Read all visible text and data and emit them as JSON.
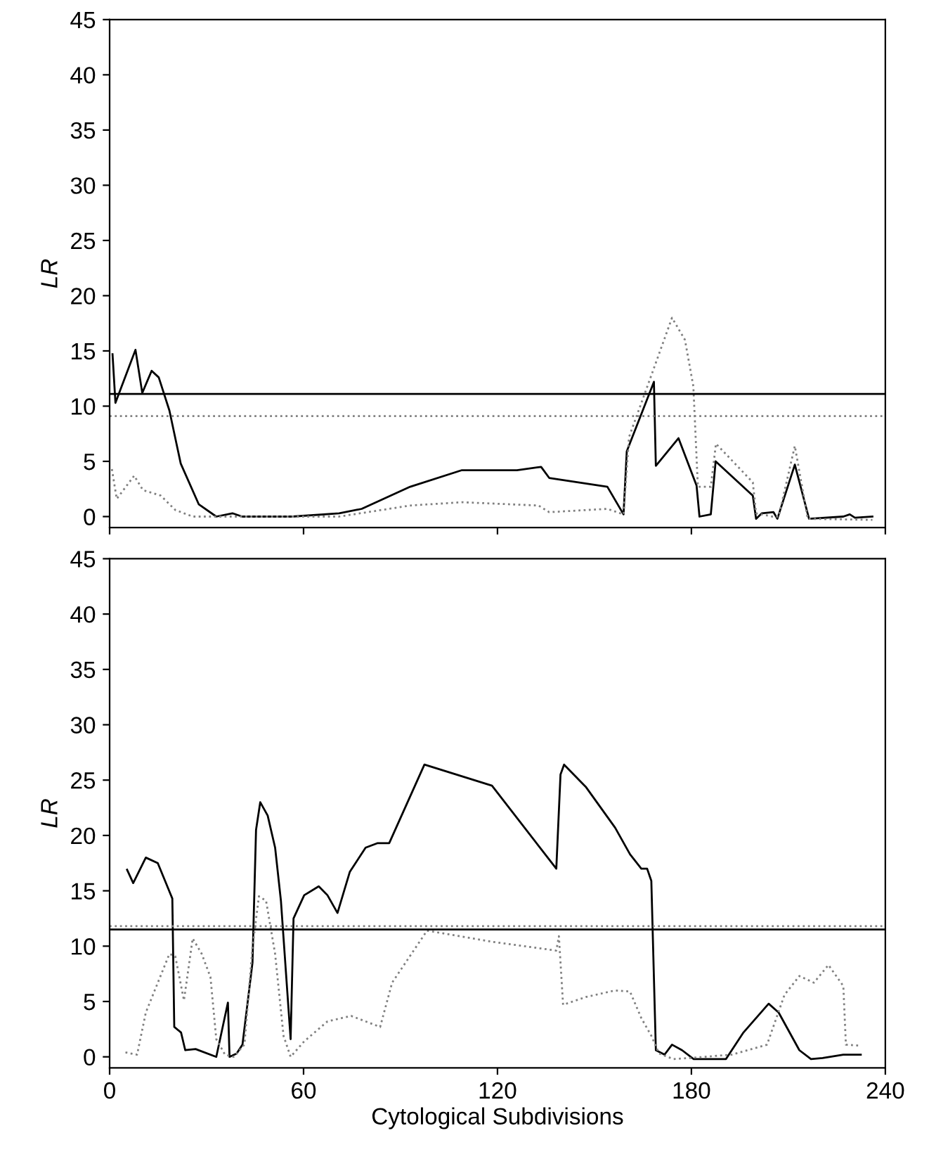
{
  "chart_data": [
    {
      "type": "line",
      "ylabel": "LR",
      "xlim": [
        0,
        240
      ],
      "ylim": [
        -1,
        45
      ],
      "xticks": [
        0,
        60,
        120,
        180,
        240
      ],
      "yticks": [
        0,
        5,
        10,
        15,
        20,
        25,
        30,
        35,
        40,
        45
      ],
      "tick_labels": "y",
      "grid": false,
      "series": [
        {
          "color": "#000000",
          "line_style": "solid",
          "x": [
            0.9,
            1.8,
            8,
            10.1,
            13,
            15.2,
            18.5,
            22,
            27.6,
            33,
            38,
            41,
            56.5,
            71,
            78,
            93,
            109,
            126,
            133.5,
            136,
            154,
            159,
            160,
            168.4,
            169,
            176,
            181.6,
            182.5,
            186,
            187.5,
            199,
            200,
            201.8,
            205.4,
            206.6,
            212,
            216.4,
            227,
            229,
            230.6,
            236
          ],
          "values": [
            14.7,
            10.3,
            15.1,
            11.2,
            13.2,
            12.6,
            9.6,
            4.8,
            1.1,
            0,
            0.3,
            0,
            0,
            0.3,
            0.7,
            2.7,
            4.2,
            4.2,
            4.5,
            3.5,
            2.7,
            0.2,
            5.9,
            12.2,
            4.6,
            7.1,
            2.8,
            0,
            0.2,
            5,
            1.9,
            -0.2,
            0.3,
            0.4,
            -0.2,
            4.7,
            -0.2,
            0,
            0.2,
            -0.1,
            0
          ]
        },
        {
          "color": "#808080",
          "line_style": "dotted",
          "x": [
            0.7,
            2.2,
            7.6,
            10.3,
            15.8,
            20.3,
            25.7,
            71,
            93,
            109,
            132.7,
            136,
            154,
            159,
            160.7,
            167,
            174,
            178,
            180.6,
            182,
            186,
            187.6,
            199,
            200,
            205,
            207,
            212,
            216,
            236
          ],
          "values": [
            4.3,
            1.6,
            3.7,
            2.4,
            1.9,
            0.6,
            0,
            0,
            1.0,
            1.3,
            1.0,
            0.4,
            0.7,
            0.2,
            7.2,
            12.3,
            18,
            16,
            11.8,
            2.7,
            2.7,
            6.6,
            3.1,
            0.3,
            0,
            0,
            6.4,
            -0.2,
            -0.3
          ]
        }
      ],
      "ref_lines": [
        {
          "axis": "y",
          "value": 11.1,
          "color": "#000000",
          "line_style": "solid"
        },
        {
          "axis": "y",
          "value": 9.1,
          "color": "#808080",
          "line_style": "dotted"
        }
      ]
    },
    {
      "type": "line",
      "xlabel": "Cytological Subdivisions",
      "ylabel": "LR",
      "xlim": [
        0,
        240
      ],
      "ylim": [
        -1,
        45
      ],
      "xticks": [
        0,
        60,
        120,
        180,
        240
      ],
      "yticks": [
        0,
        5,
        10,
        15,
        20,
        25,
        30,
        35,
        40,
        45
      ],
      "grid": false,
      "series": [
        {
          "color": "#000000",
          "line_style": "solid",
          "x": [
            5.4,
            7.3,
            11.2,
            14.9,
            19.4,
            20,
            22.1,
            23.4,
            26.6,
            33,
            36.6,
            37.1,
            39.3,
            41.1,
            44.2,
            45.3,
            46.6,
            48.9,
            51.2,
            53,
            56,
            56.9,
            60.2,
            64.7,
            67.4,
            70.5,
            74.3,
            79.2,
            82.8,
            86.5,
            97.4,
            118.3,
            138.2,
            139.5,
            140.6,
            147.3,
            156.4,
            161,
            164.5,
            166.3,
            167.6,
            169,
            171.7,
            174,
            177.1,
            180.7,
            190.7,
            196.1,
            203.9,
            207,
            213.4,
            217,
            220.6,
            227,
            232.4
          ],
          "values": [
            16.9,
            15.7,
            18.0,
            17.5,
            14.3,
            2.7,
            2.2,
            0.6,
            0.7,
            0,
            4.9,
            0,
            0.3,
            1.1,
            8.5,
            20.5,
            23,
            21.8,
            18.9,
            14.1,
            1.6,
            12.5,
            14.6,
            15.4,
            14.6,
            13.0,
            16.7,
            18.9,
            19.3,
            19.3,
            26.4,
            24.5,
            17.0,
            25.5,
            26.4,
            24.4,
            20.7,
            18.3,
            17,
            17,
            15.9,
            0.6,
            0.2,
            1.1,
            0.6,
            -0.2,
            -0.2,
            2.2,
            4.8,
            4.0,
            0.6,
            -0.2,
            -0.1,
            0.2,
            0.2
          ]
        },
        {
          "color": "#808080",
          "line_style": "dotted",
          "x": [
            4.9,
            8.5,
            11.2,
            18.5,
            20.3,
            23,
            25.7,
            28.5,
            31.2,
            33,
            35.7,
            38.4,
            41.7,
            44.2,
            46.2,
            48.4,
            51.2,
            53.8,
            56,
            60.2,
            67.4,
            74.7,
            83.7,
            87.4,
            98.2,
            118.3,
            138.2,
            139,
            140.3,
            147.3,
            156.4,
            161,
            164.5,
            167.6,
            170,
            174.4,
            179.8,
            192.5,
            203.4,
            208.8,
            213.4,
            217.9,
            222.4,
            227,
            227.8,
            232.4
          ],
          "values": [
            0.4,
            0.2,
            4.0,
            9.3,
            9.1,
            5.1,
            10.7,
            9.3,
            7.2,
            1.6,
            0.2,
            0,
            1.1,
            9.9,
            14.5,
            14.1,
            9.3,
            1.9,
            0,
            1.4,
            3.2,
            3.7,
            2.7,
            6.7,
            11.4,
            10.4,
            9.6,
            10.9,
            4.7,
            5.4,
            6.0,
            5.9,
            3.5,
            1.9,
            0.3,
            -0.2,
            -0.1,
            0.2,
            1.1,
            5.6,
            7.3,
            6.7,
            8.3,
            6.4,
            1.1,
            1.0
          ]
        }
      ],
      "ref_lines": [
        {
          "axis": "y",
          "value": 11.5,
          "color": "#000000",
          "line_style": "solid"
        },
        {
          "axis": "y",
          "value": 11.8,
          "color": "#808080",
          "line_style": "dotted"
        }
      ]
    }
  ]
}
